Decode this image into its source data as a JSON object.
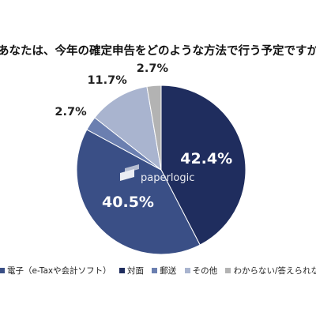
{
  "chart_data": {
    "type": "pie",
    "title": "あなたは、今年の確定申告をどのような方法で行う予定ですか",
    "slices": [
      {
        "label": "対面",
        "value": 42.4,
        "display": "42.4%",
        "color": "#1f2d5e"
      },
      {
        "label": "電子（e-Taxや会計ソフト）",
        "value": 40.5,
        "display": "40.5%",
        "color": "#3a4f86"
      },
      {
        "label": "郵送",
        "value": 2.7,
        "display": "2.7%",
        "color": "#6b7fb0"
      },
      {
        "label": "その他",
        "value": 11.7,
        "display": "11.7%",
        "color": "#a9b4cf"
      },
      {
        "label": "わからない/答えられない",
        "value": 2.7,
        "display": "2.7%",
        "color": "#b3b3b3"
      }
    ],
    "legend": {
      "placement": "bottom",
      "items": [
        {
          "label": "電子（e-Taxや会計ソフト）",
          "color": "#3a4f86"
        },
        {
          "label": "対面",
          "color": "#1f2d5e"
        },
        {
          "label": "郵送",
          "color": "#6b7fb0"
        },
        {
          "label": "その他",
          "color": "#a9b4cf"
        },
        {
          "label": "わからない/答えられない",
          "color": "#b3b3b3"
        }
      ]
    },
    "watermark": "paperlogic"
  }
}
